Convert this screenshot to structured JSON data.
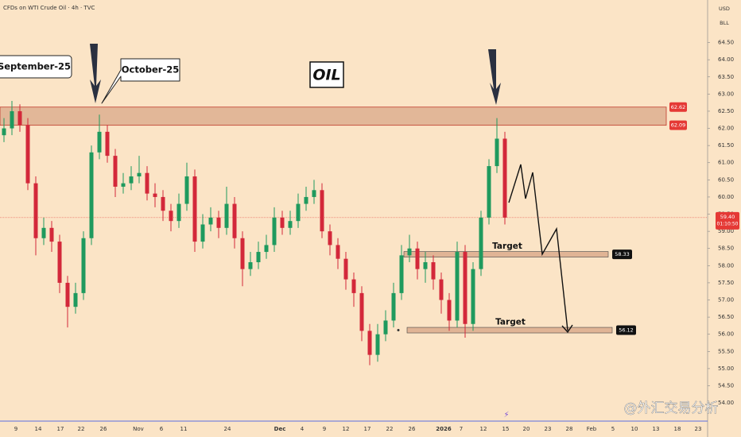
{
  "header": {
    "symbol": "CFDs on WTI Crude Oil · 4h · TVC"
  },
  "chart_data": {
    "type": "candlestick",
    "title": "OIL",
    "currency": "USD",
    "unit": "BLL",
    "annotations": [
      "September-25",
      "October-25"
    ],
    "categories": [
      "9",
      "14",
      "17",
      "22",
      "26",
      "Nov",
      "6",
      "11",
      "24",
      "Dec",
      "4",
      "9",
      "12",
      "17",
      "22",
      "26",
      "2026",
      "7",
      "12",
      "15",
      "20",
      "23",
      "28",
      "Feb",
      "5",
      "10",
      "13",
      "18",
      "23"
    ],
    "candles": {
      "open": [
        61.8,
        62.0,
        62.5,
        62.1,
        60.4,
        58.8,
        59.1,
        58.7,
        57.5,
        56.8,
        57.2,
        58.8,
        61.3,
        61.9,
        61.2,
        60.3,
        60.4,
        60.6,
        60.7,
        60.1,
        60.0,
        59.6,
        59.3,
        59.8,
        60.6,
        58.7,
        59.2,
        59.4,
        59.1,
        59.8,
        58.8,
        57.9,
        58.1,
        58.4,
        58.6,
        59.4,
        59.1,
        59.3,
        59.8,
        60.0,
        60.2,
        59.0,
        58.6,
        58.2,
        57.6,
        57.2,
        56.1,
        55.4,
        56.0,
        56.4,
        57.2,
        58.3,
        58.5,
        57.9,
        58.1,
        57.6,
        57.0,
        56.4,
        58.4,
        56.3,
        57.9,
        59.4,
        60.9,
        61.7
      ],
      "high": [
        62.3,
        62.8,
        62.7,
        62.3,
        60.6,
        59.4,
        59.3,
        58.9,
        57.7,
        57.5,
        59.0,
        61.5,
        62.4,
        62.1,
        61.4,
        60.7,
        60.9,
        61.2,
        60.9,
        60.4,
        60.2,
        59.8,
        60.1,
        61.0,
        60.8,
        59.5,
        59.7,
        59.6,
        60.3,
        60.0,
        59.0,
        58.4,
        58.7,
        58.9,
        59.7,
        59.6,
        59.6,
        60.1,
        60.3,
        60.5,
        60.4,
        59.2,
        58.8,
        58.4,
        57.8,
        57.4,
        56.3,
        56.3,
        56.7,
        57.5,
        58.6,
        58.9,
        58.7,
        58.4,
        58.3,
        57.8,
        57.2,
        58.7,
        58.6,
        58.1,
        59.6,
        61.1,
        62.3,
        61.9
      ],
      "low": [
        61.6,
        61.8,
        61.9,
        60.2,
        58.3,
        58.6,
        58.4,
        57.2,
        56.2,
        56.6,
        57.0,
        58.6,
        61.1,
        61.0,
        60.0,
        60.1,
        60.2,
        60.4,
        59.9,
        59.7,
        59.3,
        59.0,
        59.1,
        59.6,
        58.4,
        58.5,
        59.0,
        58.8,
        58.9,
        58.5,
        57.4,
        57.7,
        57.9,
        58.2,
        58.4,
        58.9,
        58.9,
        59.1,
        59.6,
        59.8,
        58.8,
        58.3,
        57.9,
        57.3,
        56.8,
        55.8,
        55.1,
        55.2,
        55.8,
        56.2,
        57.0,
        58.1,
        57.6,
        57.5,
        57.3,
        56.6,
        56.1,
        56.2,
        55.9,
        56.1,
        57.7,
        59.2,
        60.7,
        59.2
      ],
      "close": [
        62.0,
        62.5,
        62.1,
        60.4,
        58.8,
        59.1,
        58.7,
        57.5,
        56.8,
        57.2,
        58.8,
        61.3,
        61.9,
        61.2,
        60.3,
        60.4,
        60.6,
        60.7,
        60.1,
        60.0,
        59.6,
        59.3,
        59.8,
        60.6,
        58.7,
        59.2,
        59.4,
        59.1,
        59.8,
        58.8,
        57.9,
        58.1,
        58.4,
        58.6,
        59.4,
        59.1,
        59.3,
        59.8,
        60.0,
        60.2,
        59.0,
        58.6,
        58.2,
        57.6,
        57.2,
        56.1,
        55.4,
        56.0,
        56.4,
        57.2,
        58.3,
        58.5,
        57.9,
        58.1,
        57.6,
        57.0,
        56.4,
        58.4,
        56.3,
        57.9,
        59.4,
        60.9,
        61.7,
        59.4
      ]
    },
    "up_color": "#1f9a5e",
    "down_color": "#d3283a",
    "ylim": [
      53.47,
      65.74
    ],
    "yticks": [
      {
        "value": 54,
        "label": "54.00"
      },
      {
        "value": 54.5,
        "label": "54.50"
      },
      {
        "value": 55,
        "label": "55.00"
      },
      {
        "value": 55.5,
        "label": "55.50"
      },
      {
        "value": 56,
        "label": "56.00"
      },
      {
        "value": 56.5,
        "label": "56.50"
      },
      {
        "value": 57,
        "label": "57.00"
      },
      {
        "value": 57.5,
        "label": "57.50"
      },
      {
        "value": 58,
        "label": "58.00"
      },
      {
        "value": 58.5,
        "label": "58.50"
      },
      {
        "value": 59,
        "label": "59.00"
      },
      {
        "value": 59.5,
        "label": "59.50"
      },
      {
        "value": 60,
        "label": "60.00"
      },
      {
        "value": 60.5,
        "label": "60.50"
      },
      {
        "value": 61,
        "label": "61.00"
      },
      {
        "value": 61.5,
        "label": "61.50"
      },
      {
        "value": 62,
        "label": "62.00"
      },
      {
        "value": 62.5,
        "label": "62.50"
      },
      {
        "value": 63,
        "label": "63.00"
      },
      {
        "value": 63.5,
        "label": "63.50"
      },
      {
        "value": 64,
        "label": "64.00"
      },
      {
        "value": 64.5,
        "label": "64.50"
      }
    ],
    "resistance": {
      "top": 62.62,
      "bottom": 62.09
    },
    "last_price": {
      "value": 59.4,
      "label": "59.40"
    },
    "countdown": "01:10:50",
    "targets": [
      {
        "text": "Target",
        "value": 58.33
      },
      {
        "text": "Target",
        "value": 56.12
      }
    ]
  },
  "watermark": "@外汇交易分析"
}
